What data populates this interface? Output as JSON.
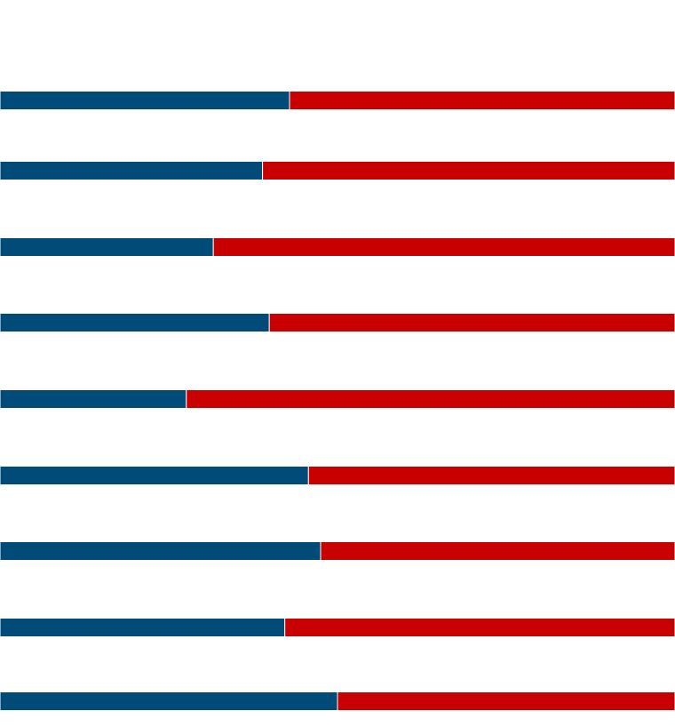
{
  "chart_data": {
    "type": "bar",
    "orientation": "horizontal",
    "stacked": true,
    "normalized": true,
    "title": "",
    "xlabel": "",
    "ylabel": "",
    "xlim": [
      0,
      100
    ],
    "grid": false,
    "legend": "none",
    "categories": [
      "",
      "",
      "",
      "",
      "",
      "",
      "",
      "",
      ""
    ],
    "series": [
      {
        "color": "#004b78",
        "values": [
          42.9,
          38.9,
          31.6,
          39.9,
          27.6,
          45.7,
          47.5,
          42.2,
          50.0
        ]
      },
      {
        "color": "#c80000",
        "values": [
          57.1,
          61.1,
          68.4,
          60.1,
          72.4,
          54.3,
          52.5,
          57.8,
          50.0
        ]
      }
    ]
  }
}
